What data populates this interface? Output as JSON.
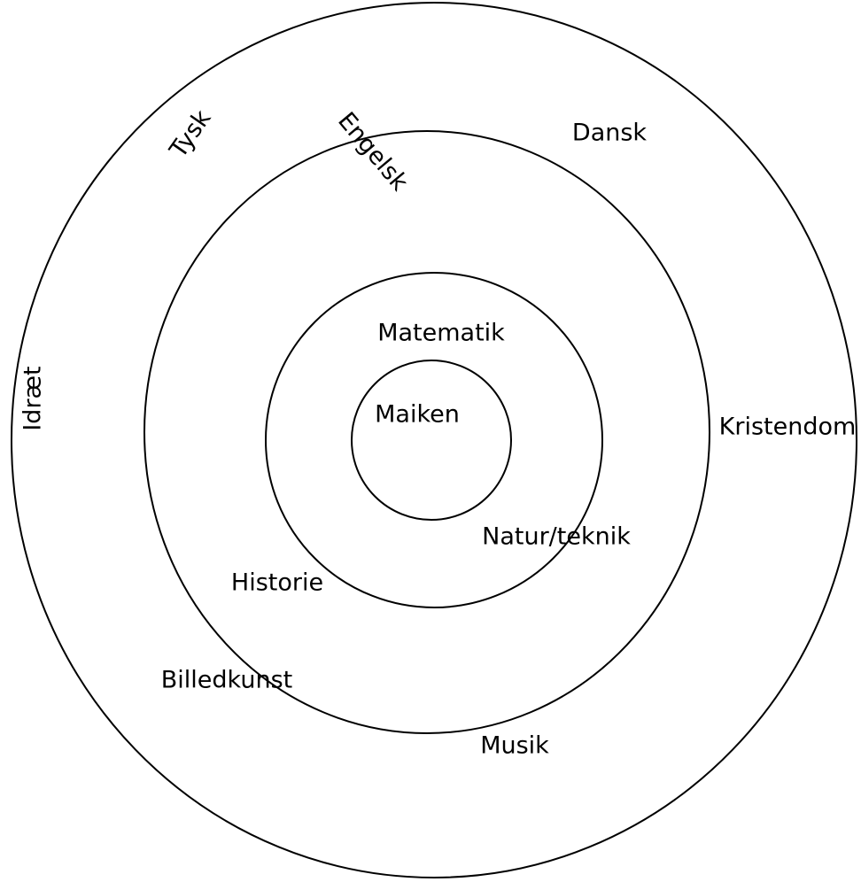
{
  "diagram": {
    "rings": [
      {
        "labels": [
          "Tysk",
          "Engelsk",
          "Dansk",
          "Idræt",
          "Kristendom",
          "Billedkunst",
          "Musik"
        ]
      },
      {
        "labels": [
          "Historie"
        ]
      },
      {
        "labels": [
          "Matematik",
          "Natur/teknik"
        ]
      },
      {
        "labels": [
          "Maiken"
        ]
      }
    ]
  }
}
